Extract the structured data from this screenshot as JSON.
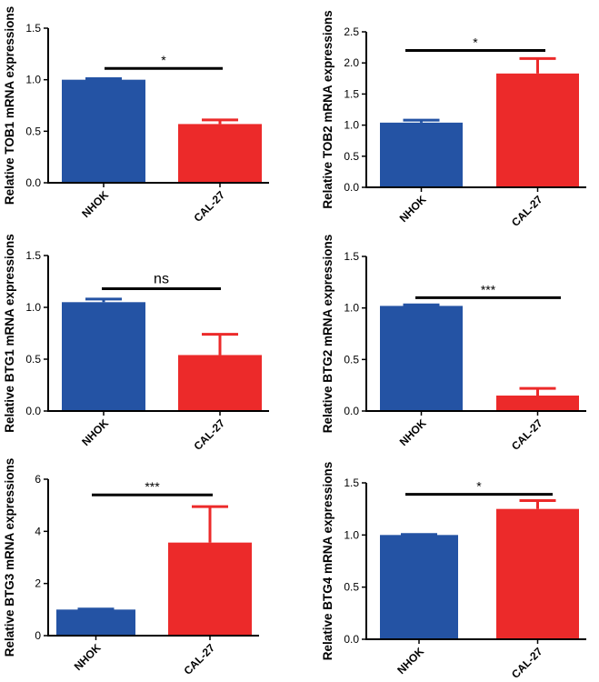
{
  "chart_data": [
    {
      "type": "bar",
      "categories": [
        "NHOK",
        "CAL-27"
      ],
      "values": [
        1.0,
        0.57
      ],
      "errors": [
        0.01,
        0.04
      ],
      "colors": [
        "#2453a4",
        "#ec2a2a"
      ],
      "ylabel": "Relative TOB1 mRNA expressions",
      "ylim": [
        0,
        1.5
      ],
      "yticks": [
        "0.0",
        "0.5",
        "1.0",
        "1.5"
      ],
      "yticks_values": [
        0,
        0.5,
        1.0,
        1.5
      ],
      "significance": "*",
      "sig_y": 1.11
    },
    {
      "type": "bar",
      "categories": [
        "NHOK",
        "CAL-27"
      ],
      "values": [
        1.04,
        1.83
      ],
      "errors": [
        0.04,
        0.24
      ],
      "colors": [
        "#2453a4",
        "#ec2a2a"
      ],
      "ylabel": "Relative TOB2 mRNA expressions",
      "ylim": [
        0,
        2.5
      ],
      "yticks": [
        "0.0",
        "0.5",
        "1.0",
        "1.5",
        "2.0",
        "2.5"
      ],
      "yticks_values": [
        0,
        0.5,
        1.0,
        1.5,
        2.0,
        2.5
      ],
      "significance": "*",
      "sig_y": 2.2
    },
    {
      "type": "bar",
      "categories": [
        "NHOK",
        "CAL-27"
      ],
      "values": [
        1.05,
        0.54
      ],
      "errors": [
        0.03,
        0.2
      ],
      "colors": [
        "#2453a4",
        "#ec2a2a"
      ],
      "ylabel": "Relative BTG1 mRNA expressions",
      "ylim": [
        0,
        1.5
      ],
      "yticks": [
        "0.0",
        "0.5",
        "1.0",
        "1.5"
      ],
      "yticks_values": [
        0,
        0.5,
        1.0,
        1.5
      ],
      "significance": "ns",
      "sig_y": 1.18
    },
    {
      "type": "bar",
      "categories": [
        "NHOK",
        "CAL-27"
      ],
      "values": [
        1.02,
        0.15
      ],
      "errors": [
        0.01,
        0.07
      ],
      "colors": [
        "#2453a4",
        "#ec2a2a"
      ],
      "ylabel": "Relative BTG2 mRNA expressions",
      "ylim": [
        0,
        1.5
      ],
      "yticks": [
        "0.0",
        "0.5",
        "1.0",
        "1.5"
      ],
      "yticks_values": [
        0,
        0.5,
        1.0,
        1.5
      ],
      "significance": "***",
      "sig_y": 1.1
    },
    {
      "type": "bar",
      "categories": [
        "NHOK",
        "CAL-27"
      ],
      "values": [
        1.0,
        3.57
      ],
      "errors": [
        0.02,
        1.38
      ],
      "colors": [
        "#2453a4",
        "#ec2a2a"
      ],
      "ylabel": "Relative BTG3 mRNA expressions",
      "ylim": [
        0,
        6
      ],
      "yticks": [
        "0",
        "2",
        "4",
        "6"
      ],
      "yticks_values": [
        0,
        2,
        4,
        6
      ],
      "significance": "***",
      "sig_y": 5.4
    },
    {
      "type": "bar",
      "categories": [
        "NHOK",
        "CAL-27"
      ],
      "values": [
        1.0,
        1.25
      ],
      "errors": [
        0.005,
        0.08
      ],
      "colors": [
        "#2453a4",
        "#ec2a2a"
      ],
      "ylabel": "Relative BTG4 mRNA expressions",
      "ylim": [
        0,
        1.5
      ],
      "yticks": [
        "0.0",
        "0.5",
        "1.0",
        "1.5"
      ],
      "yticks_values": [
        0,
        0.5,
        1.0,
        1.5
      ],
      "significance": "*",
      "sig_y": 1.39
    }
  ]
}
